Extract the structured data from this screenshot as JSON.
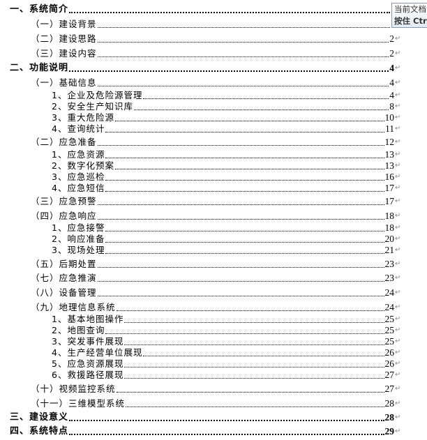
{
  "tooltip": {
    "line1": "当前文档",
    "line2": "按住 Ctrl"
  },
  "toc": [
    {
      "level": 1,
      "text": "一、系统简介",
      "page": ""
    },
    {
      "level": 2,
      "text": "（一）建设背景",
      "page": ""
    },
    {
      "level": 2,
      "text": "（二）建设思路",
      "page": "2"
    },
    {
      "level": 2,
      "text": "（三）建设内容",
      "page": "2"
    },
    {
      "level": 1,
      "text": "二、功能说明",
      "page": "4"
    },
    {
      "level": 2,
      "text": "（一）基础信息",
      "page": "4"
    },
    {
      "level": 3,
      "text": "1、企业及危险源管理",
      "page": "4"
    },
    {
      "level": 3,
      "text": "2、安全生产知识库",
      "page": "8"
    },
    {
      "level": 3,
      "text": "3、重大危险源",
      "page": "10"
    },
    {
      "level": 3,
      "text": "4、查询统计",
      "page": "11"
    },
    {
      "level": 2,
      "text": "（二）应急准备",
      "page": "12"
    },
    {
      "level": 3,
      "text": "1、应急资源",
      "page": "13"
    },
    {
      "level": 3,
      "text": "2、数字化预案",
      "page": "13"
    },
    {
      "level": 3,
      "text": "3、应急巡检",
      "page": "16"
    },
    {
      "level": 3,
      "text": "4、应急短信",
      "page": "17"
    },
    {
      "level": 2,
      "text": "（三）应急预警",
      "page": "17"
    },
    {
      "level": 2,
      "text": "（四）应急响应",
      "page": "18"
    },
    {
      "level": 3,
      "text": "1、应急接警",
      "page": "18"
    },
    {
      "level": 3,
      "text": "2、响应准备",
      "page": "20"
    },
    {
      "level": 3,
      "text": "3、现场处理",
      "page": "21"
    },
    {
      "level": 2,
      "text": "（五）后期处置",
      "page": "23"
    },
    {
      "level": 2,
      "text": "（七）应急推演",
      "page": "23"
    },
    {
      "level": 2,
      "text": "（八）设备管理",
      "page": "24"
    },
    {
      "level": 2,
      "text": "（九）地理信息系统",
      "page": "24"
    },
    {
      "level": 3,
      "text": "1、基本地图操作",
      "page": "25"
    },
    {
      "level": 3,
      "text": "2、地图查询",
      "page": "25"
    },
    {
      "level": 3,
      "text": "3、突发事件展现",
      "page": "25"
    },
    {
      "level": 3,
      "text": "4、生产经营单位展现",
      "page": "26"
    },
    {
      "level": 3,
      "text": "5、应急资源展现",
      "page": "26"
    },
    {
      "level": 3,
      "text": "6、救援路径展现",
      "page": "27"
    },
    {
      "level": 2,
      "text": "（十）视频监控系统",
      "page": "27"
    },
    {
      "level": 2,
      "text": "（十一）三维模型系统",
      "page": "28"
    },
    {
      "level": 1,
      "text": "三、建设意义",
      "page": "28"
    },
    {
      "level": 1,
      "text": "四、系统特点",
      "page": "29"
    }
  ]
}
